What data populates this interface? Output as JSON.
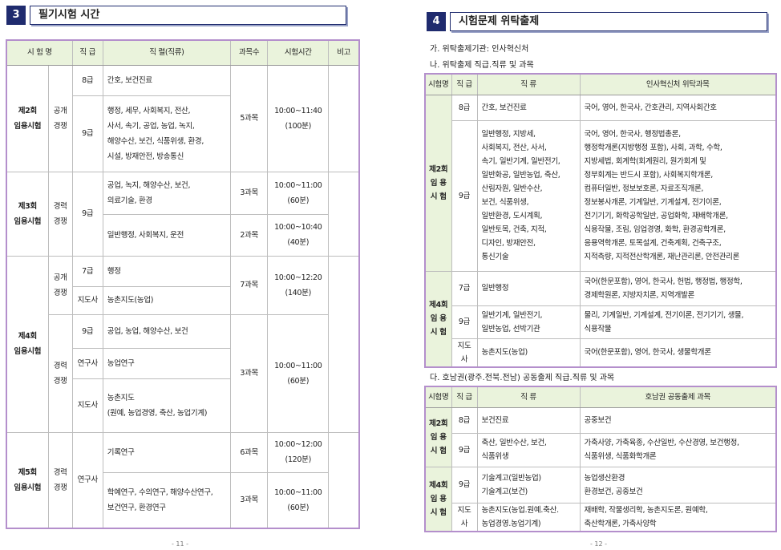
{
  "left": {
    "section_number": "3",
    "title": "필기시험 시간",
    "table": {
      "headers": [
        "시  험  명",
        "직 급",
        "직    렬(직류)",
        "과목수",
        "시험시간",
        "비고"
      ],
      "rows": [
        [
          "제2회\n임용시험",
          "공개\n경쟁",
          "8급",
          "간호, 보건진료",
          "5과목",
          "10:00~11:40\n(100분)"
        ],
        [
          "9급",
          "행정, 세무, 사회복지, 전산,\n사서, 속기, 공업, 농업, 녹지,\n해양수산, 보건, 식품위생, 환경,\n시설, 방재안전, 방송통신"
        ],
        [
          "제3회\n임용시험",
          "경력\n경쟁",
          "9급",
          "공업, 녹지, 해양수산, 보건,\n의료기술, 환경",
          "3과목",
          "10:00~11:00\n(60분)"
        ],
        [
          "일반행정, 사회복지, 운전",
          "2과목",
          "10:00~10:40\n(40분)"
        ],
        [
          "제4회\n임용시험",
          "공개\n경쟁",
          "7급",
          "행정",
          "7과목",
          "10:00~12:20\n(140분)"
        ],
        [
          "지도사",
          "농촌지도(농업)"
        ],
        [
          "경력\n경쟁",
          "9급",
          "공업, 농업, 해양수산, 보건",
          "3과목",
          "10:00~11:00\n(60분)"
        ],
        [
          "연구사",
          "농업연구"
        ],
        [
          "지도사",
          "농촌지도\n(원예, 농업경영, 축산, 농업기계)"
        ],
        [
          "제5회\n임용시험",
          "경력\n경쟁",
          "연구사",
          "기록연구",
          "6과목",
          "10:00~12:00\n(120분)"
        ],
        [
          "학예연구, 수의연구, 해양수산연구,\n보건연구, 환경연구",
          "3과목",
          "10:00~11:00\n(60분)"
        ]
      ]
    },
    "page_number": "- 11 -"
  },
  "right": {
    "section_number": "4",
    "title": "시험문제 위탁출제",
    "item_a": "가. 위탁출제기관: 인사혁신처",
    "item_b": "나. 위탁출제 직급․직류 및 과목",
    "table1": {
      "headers": [
        "시험명",
        "직 급",
        "직  류",
        "인사혁신처 위탁과목"
      ],
      "rows": [
        [
          "제2회\n임 용\n시 험",
          "8급",
          "간호, 보건진료",
          "국어, 영어, 한국사, 간호관리, 지역사회간호"
        ],
        [
          "9급",
          "일반행정, 지방세,\n사회복지, 전산, 사서,\n속기, 일반기계, 일반전기,\n일반화공, 일반농업, 축산,\n산림자원, 일반수산,\n보건, 식품위생,\n일반환경, 도시계획,\n일반토목, 건축, 지적,\n디자인, 방재안전,\n통신기술",
          "국어, 영어, 한국사, 행정법총론,\n행정학개론(지방행정 포함), 사회, 과학, 수학,\n지방세법, 회계학(회계원리, 원가회계 및\n정부회계는 반드시 포함), 사회복지학개론,\n컴퓨터일반, 정보보호론, 자료조직개론,\n정보봉사개론, 기계일반, 기계설계, 전기이론,\n전기기기, 화학공학일반, 공업화학, 재배학개론,\n식용작물, 조림, 임업경영, 화학, 환경공학개론,\n응용역학개론, 토목설계, 건축계획, 건축구조,\n지적측량, 지적전산학개론, 재난관리론, 안전관리론"
        ],
        [
          "제4회\n임 용\n시 험",
          "7급",
          "일반행정",
          "국어(한문포함), 영어, 한국사, 헌법, 행정법, 행정학,\n경제학원론, 지방자치론, 지역개발론"
        ],
        [
          "9급",
          "일반기계, 일반전기,\n일반농업, 선박기관",
          "물리, 기계일반, 기계설계, 전기이론, 전기기기, 생물,\n식용작물"
        ],
        [
          "지도사",
          "농촌지도(농업)",
          "국어(한문포함), 영어, 한국사, 생물학개론"
        ]
      ]
    },
    "item_c": "다. 호남권(광주․전북․전남) 공동출제 직급․직류 및 과목",
    "table2": {
      "headers": [
        "시험명",
        "직 급",
        "직  류",
        "호남권 공동출제 과목"
      ],
      "rows": [
        [
          "제2회\n임 용\n시 험",
          "8급",
          "보건진료",
          "공중보건"
        ],
        [
          "9급",
          "축산, 일반수산, 보건,\n식품위생",
          "가축사양, 가축육종, 수산일반, 수산경영, 보건행정,\n식품위생, 식품화학개론"
        ],
        [
          "제4회\n임 용\n시 험",
          "9급",
          "기술계고(일반농업)\n기술계고(보건)",
          "농업생산환경\n환경보건, 공중보건"
        ],
        [
          "지도사",
          "농촌지도(농업․원예․축산․\n농업경영․농업기계)",
          "재배학, 작물생리학, 농촌지도론, 원예학,\n축산학개론, 가축사양학"
        ]
      ]
    },
    "page_number": "- 12 -"
  }
}
